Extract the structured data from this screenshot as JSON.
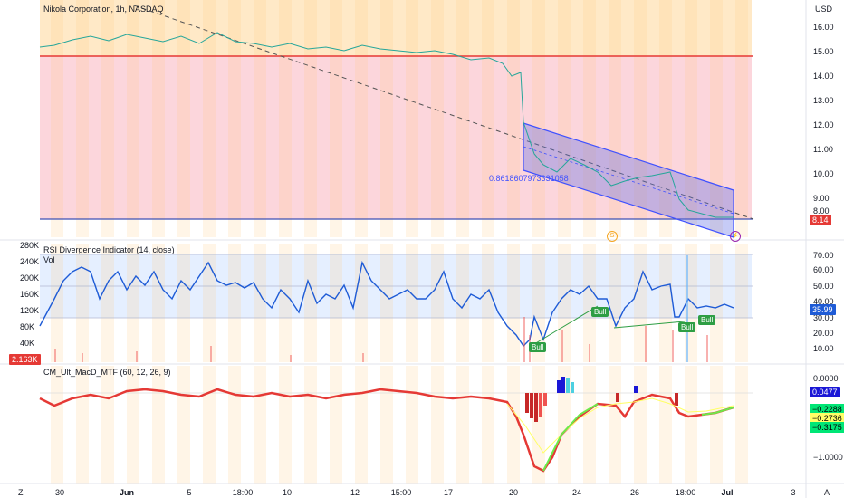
{
  "header": {
    "symbol_title": "Nikola Corporation, 1h, NASDAQ",
    "currency": "USD"
  },
  "price_axis": {
    "ticks": [
      "16.00",
      "15.00",
      "14.00",
      "13.00",
      "12.00",
      "11.00",
      "10.00",
      "9.00",
      "8.00"
    ],
    "current_price": "8.14",
    "current_price_color": "#e53935"
  },
  "fib_label": "0.8618607973331058",
  "rsi_panel": {
    "title": "RSI Divergence Indicator (14, close)",
    "vol_label": "Vol",
    "ticks": [
      "70.00",
      "60.00",
      "50.00",
      "40.00",
      "30.00",
      "20.00",
      "10.00"
    ],
    "current_value": "35.99",
    "bull_labels": [
      "Bull",
      "Bull",
      "Bull",
      "Bull"
    ]
  },
  "volume_axis": {
    "ticks": [
      "280K",
      "240K",
      "200K",
      "160K",
      "120K",
      "80K",
      "40K"
    ],
    "current_value": "2.163K"
  },
  "macd_panel": {
    "title": "CM_Ult_MacD_MTF (60, 12, 26, 9)",
    "ticks": [
      "0.0000",
      "−1.0000"
    ],
    "values": [
      "0.0477",
      "−0.2288",
      "−0.2736",
      "−0.3175"
    ],
    "value_colors": [
      "#1a17d6",
      "#00e676",
      "#ffff66",
      "#00e676"
    ]
  },
  "time_axis": {
    "ticks": [
      "30",
      "Jun",
      "5",
      "18:00",
      "10",
      "12",
      "15:00",
      "17",
      "20",
      "24",
      "26",
      "18:00",
      "Jul",
      "3"
    ],
    "bold": [
      false,
      true,
      false,
      false,
      false,
      false,
      false,
      false,
      false,
      false,
      false,
      false,
      true,
      false
    ]
  },
  "corner_icons": {
    "left": "Z",
    "right": "A"
  }
}
